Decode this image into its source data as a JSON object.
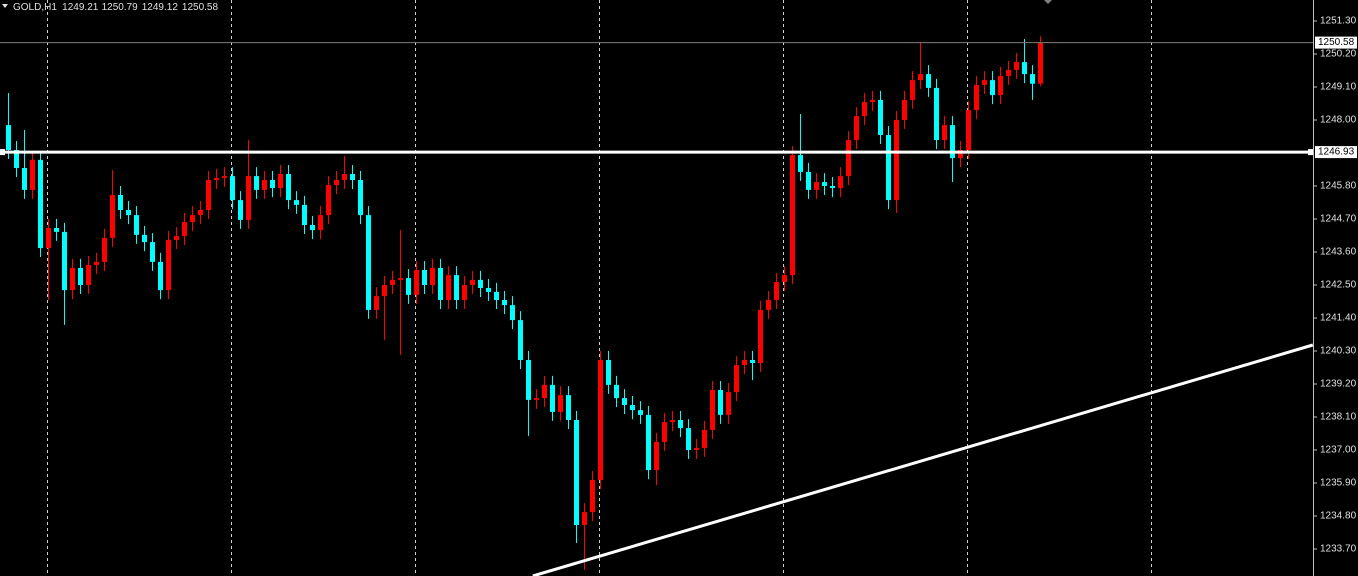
{
  "chart_data": {
    "type": "candlestick",
    "title": "GOLD,H1",
    "open": [
      1247.83,
      1247.0,
      1246.4,
      1245.67,
      1246.67,
      1243.73,
      1244.4,
      1244.27,
      1242.33,
      1243.07,
      1242.5,
      1243.17,
      1243.27,
      1244.07,
      1245.5,
      1245.0,
      1244.83,
      1244.17,
      1243.93,
      1243.27,
      1242.33,
      1244.0,
      1244.13,
      1244.6,
      1244.83,
      1245.0,
      1246.0,
      1246.07,
      1246.13,
      1245.33,
      1244.67,
      1246.13,
      1245.67,
      1246.0,
      1245.73,
      1246.2,
      1245.33,
      1245.17,
      1244.5,
      1244.33,
      1244.83,
      1245.83,
      1246.0,
      1246.2,
      1246.0,
      1244.83,
      1241.67,
      1242.13,
      1242.5,
      1242.67,
      1242.73,
      1242.17,
      1243.0,
      1242.5,
      1243.07,
      1242.0,
      1242.83,
      1242.0,
      1242.5,
      1242.67,
      1242.4,
      1242.27,
      1242.0,
      1241.83,
      1241.33,
      1240.0,
      1238.67,
      1238.73,
      1239.17,
      1238.27,
      1238.83,
      1238.0,
      1234.5,
      1234.93,
      1236.0,
      1240.0,
      1239.17,
      1238.73,
      1238.5,
      1238.33,
      1238.17,
      1236.33,
      1237.27,
      1237.93,
      1238.0,
      1237.73,
      1237.0,
      1237.07,
      1237.67,
      1239.0,
      1238.17,
      1238.93,
      1239.83,
      1240.0,
      1239.9,
      1241.67,
      1242.0,
      1242.6,
      1242.83,
      1246.83,
      1246.27,
      1245.67,
      1245.93,
      1245.8,
      1245.73,
      1246.13,
      1247.33,
      1248.13,
      1248.6,
      1248.67,
      1247.5,
      1245.33,
      1248.0,
      1248.67,
      1249.33,
      1249.53,
      1249.07,
      1247.33,
      1247.83,
      1246.73,
      1247.0,
      1248.33,
      1249.17,
      1249.33,
      1248.83,
      1249.47,
      1249.67,
      1249.93,
      1249.53,
      1249.21
    ],
    "high": [
      1248.9,
      1247.3,
      1247.67,
      1246.97,
      1246.97,
      1244.7,
      1244.7,
      1244.57,
      1243.37,
      1243.37,
      1243.47,
      1243.57,
      1244.37,
      1246.33,
      1245.8,
      1245.3,
      1245.13,
      1244.47,
      1244.23,
      1243.57,
      1244.3,
      1244.43,
      1244.9,
      1245.13,
      1245.3,
      1246.3,
      1246.37,
      1246.43,
      1246.43,
      1245.63,
      1247.33,
      1246.43,
      1246.3,
      1246.3,
      1246.5,
      1246.5,
      1245.63,
      1245.47,
      1244.8,
      1245.13,
      1246.13,
      1246.3,
      1246.8,
      1246.5,
      1246.3,
      1245.13,
      1242.43,
      1242.8,
      1242.97,
      1244.33,
      1243.03,
      1243.3,
      1243.3,
      1243.37,
      1243.37,
      1243.13,
      1243.13,
      1242.8,
      1242.97,
      1242.97,
      1242.7,
      1242.57,
      1242.3,
      1242.13,
      1241.63,
      1240.3,
      1239.03,
      1239.47,
      1239.47,
      1239.13,
      1239.13,
      1238.3,
      1235.23,
      1236.3,
      1240.3,
      1240.3,
      1239.47,
      1239.03,
      1238.8,
      1238.63,
      1238.47,
      1237.57,
      1238.23,
      1238.3,
      1238.3,
      1238.03,
      1237.37,
      1237.97,
      1239.3,
      1239.3,
      1239.23,
      1240.13,
      1240.3,
      1240.3,
      1241.97,
      1242.3,
      1242.9,
      1243.13,
      1247.13,
      1248.2,
      1246.57,
      1246.23,
      1246.23,
      1246.1,
      1246.43,
      1247.63,
      1248.43,
      1248.9,
      1248.97,
      1248.97,
      1247.8,
      1248.3,
      1248.97,
      1249.63,
      1250.6,
      1249.83,
      1249.37,
      1248.13,
      1248.13,
      1247.3,
      1248.63,
      1249.47,
      1249.63,
      1249.63,
      1249.77,
      1249.97,
      1250.23,
      1250.7,
      1249.83,
      1250.79
    ],
    "low": [
      1246.7,
      1246.1,
      1245.37,
      1245.37,
      1243.43,
      1242.0,
      1243.97,
      1241.17,
      1242.03,
      1242.2,
      1242.2,
      1242.87,
      1242.97,
      1243.77,
      1244.7,
      1244.53,
      1243.87,
      1243.63,
      1242.97,
      1242.03,
      1242.03,
      1243.7,
      1243.83,
      1244.3,
      1244.53,
      1244.7,
      1245.7,
      1245.77,
      1245.03,
      1244.37,
      1244.37,
      1245.37,
      1245.37,
      1245.43,
      1245.43,
      1245.03,
      1244.87,
      1244.2,
      1244.03,
      1244.03,
      1244.53,
      1245.53,
      1245.7,
      1245.7,
      1244.53,
      1241.37,
      1241.37,
      1240.67,
      1242.2,
      1240.17,
      1241.87,
      1241.87,
      1242.2,
      1242.2,
      1241.7,
      1241.7,
      1241.7,
      1241.7,
      1242.2,
      1242.1,
      1241.97,
      1241.7,
      1241.53,
      1241.03,
      1239.7,
      1237.47,
      1238.37,
      1238.43,
      1237.97,
      1237.97,
      1237.7,
      1233.9,
      1233.0,
      1234.63,
      1235.7,
      1238.87,
      1238.43,
      1238.2,
      1238.03,
      1237.87,
      1236.03,
      1235.83,
      1236.97,
      1237.63,
      1237.43,
      1236.7,
      1236.7,
      1236.77,
      1237.37,
      1237.87,
      1237.87,
      1238.63,
      1239.53,
      1239.33,
      1239.6,
      1241.37,
      1241.7,
      1242.3,
      1242.53,
      1245.97,
      1245.37,
      1245.37,
      1245.5,
      1245.43,
      1245.43,
      1245.83,
      1247.03,
      1247.83,
      1248.3,
      1247.2,
      1245.03,
      1244.9,
      1247.7,
      1248.37,
      1249.03,
      1248.77,
      1247.03,
      1247.03,
      1245.93,
      1246.43,
      1246.7,
      1248.03,
      1248.87,
      1248.53,
      1248.53,
      1249.17,
      1249.37,
      1249.23,
      1248.67,
      1249.12
    ],
    "close": [
      1247.0,
      1246.4,
      1245.67,
      1246.67,
      1243.73,
      1244.4,
      1244.27,
      1242.33,
      1243.07,
      1242.5,
      1243.17,
      1243.27,
      1244.07,
      1245.5,
      1245.0,
      1244.83,
      1244.17,
      1243.93,
      1243.27,
      1242.33,
      1244.0,
      1244.13,
      1244.6,
      1244.83,
      1245.0,
      1246.0,
      1246.07,
      1246.13,
      1245.33,
      1244.67,
      1246.13,
      1245.67,
      1246.0,
      1245.73,
      1246.2,
      1245.33,
      1245.17,
      1244.5,
      1244.33,
      1244.83,
      1245.83,
      1246.0,
      1246.2,
      1246.0,
      1244.83,
      1241.67,
      1242.13,
      1242.5,
      1242.67,
      1242.73,
      1242.17,
      1243.0,
      1242.5,
      1243.07,
      1242.0,
      1242.83,
      1242.0,
      1242.5,
      1242.67,
      1242.4,
      1242.27,
      1242.0,
      1241.83,
      1241.33,
      1240.0,
      1238.67,
      1238.73,
      1239.17,
      1238.27,
      1238.83,
      1238.0,
      1234.5,
      1234.93,
      1236.0,
      1240.0,
      1239.17,
      1238.73,
      1238.5,
      1238.33,
      1238.17,
      1236.33,
      1237.27,
      1237.93,
      1238.0,
      1237.73,
      1237.0,
      1237.07,
      1237.67,
      1239.0,
      1238.17,
      1238.93,
      1239.83,
      1240.0,
      1239.9,
      1241.67,
      1242.0,
      1242.6,
      1242.83,
      1246.83,
      1246.27,
      1245.67,
      1245.93,
      1245.8,
      1245.73,
      1246.13,
      1247.33,
      1248.13,
      1248.6,
      1248.67,
      1247.5,
      1245.33,
      1248.0,
      1248.67,
      1249.33,
      1249.53,
      1249.07,
      1247.33,
      1247.83,
      1246.73,
      1247.0,
      1248.33,
      1249.17,
      1249.33,
      1248.83,
      1249.47,
      1249.67,
      1249.93,
      1249.53,
      1249.21,
      1250.58
    ],
    "colors": {
      "up": "#ff0000",
      "down": "#00ffff"
    },
    "ylim": [
      1232.8,
      1252.0
    ],
    "yticks": [
      {
        "value": 1251.3,
        "label": "1251.30"
      },
      {
        "value": 1250.2,
        "label": "1250.20"
      },
      {
        "value": 1249.1,
        "label": "1249.10"
      },
      {
        "value": 1248.0,
        "label": "1248.00"
      },
      {
        "value": 1245.8,
        "label": "1245.80"
      },
      {
        "value": 1244.7,
        "label": "1244.70"
      },
      {
        "value": 1243.6,
        "label": "1243.60"
      },
      {
        "value": 1242.5,
        "label": "1242.50"
      },
      {
        "value": 1241.4,
        "label": "1241.40"
      },
      {
        "value": 1240.3,
        "label": "1240.30"
      },
      {
        "value": 1239.2,
        "label": "1239.20"
      },
      {
        "value": 1238.1,
        "label": "1238.10"
      },
      {
        "value": 1237.0,
        "label": "1237.00"
      },
      {
        "value": 1235.9,
        "label": "1235.90"
      },
      {
        "value": 1234.8,
        "label": "1234.80"
      },
      {
        "value": 1233.7,
        "label": "1233.70"
      }
    ],
    "hline": 1246.93,
    "trendline": {
      "x": [
        65.6,
        163.1
      ],
      "y": [
        1232.8,
        1240.5
      ]
    }
  }
}
